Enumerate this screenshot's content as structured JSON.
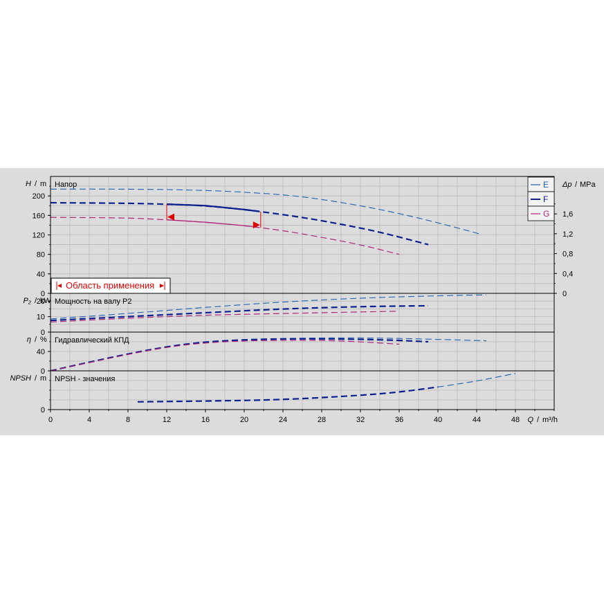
{
  "chart_data": {
    "type": "line",
    "x_axis": {
      "label_symbol": "Q",
      "label_unit": "m³/h",
      "range": [
        0,
        52
      ],
      "ticks": [
        0,
        4,
        8,
        12,
        16,
        20,
        24,
        28,
        32,
        36,
        40,
        44,
        48
      ]
    },
    "legend": {
      "placement": "top-right",
      "entries": [
        {
          "key": "E",
          "color": "#1f5fb4"
        },
        {
          "key": "F",
          "color": "#0b1f8f"
        },
        {
          "key": "G",
          "color": "#b0247a"
        }
      ]
    },
    "panels": [
      {
        "id": "head",
        "title": "Напор",
        "y_symbol": "H",
        "y_unit": "m",
        "y_range": [
          0,
          240
        ],
        "y_ticks": [
          0,
          40,
          80,
          120,
          160,
          200
        ],
        "right_axis": {
          "symbol": "Δp",
          "unit": "MPa",
          "ticks": [
            {
              "value": 0,
              "label": "0"
            },
            {
              "value": 0.4,
              "label": "0,4"
            },
            {
              "value": 0.8,
              "label": "0,8"
            },
            {
              "value": 1.2,
              "label": "1,2"
            },
            {
              "value": 1.6,
              "label": "1,6"
            }
          ]
        },
        "series": [
          {
            "key": "E",
            "points": [
              [
                0,
                214
              ],
              [
                8,
                214
              ],
              [
                16,
                212
              ],
              [
                24,
                203
              ],
              [
                28,
                193
              ],
              [
                32,
                180
              ],
              [
                36,
                164
              ],
              [
                40,
                145
              ],
              [
                44.5,
                121
              ]
            ]
          },
          {
            "key": "F",
            "points": [
              [
                0,
                186
              ],
              [
                8,
                185
              ],
              [
                12,
                183
              ],
              [
                16,
                180
              ],
              [
                20,
                172
              ],
              [
                22,
                167
              ],
              [
                26,
                156
              ],
              [
                30,
                142
              ],
              [
                34,
                126
              ],
              [
                39,
                100
              ]
            ]
          },
          {
            "key": "G",
            "points": [
              [
                0,
                156
              ],
              [
                8,
                155
              ],
              [
                12,
                151
              ],
              [
                16,
                146
              ],
              [
                20,
                139
              ],
              [
                24,
                129
              ],
              [
                28,
                115
              ],
              [
                32,
                100
              ],
              [
                36,
                80
              ]
            ]
          }
        ],
        "application_range": {
          "label": "Область применения",
          "q_min": 12,
          "q_max": 21.7
        }
      },
      {
        "id": "power",
        "title": "Мощность на валу P2",
        "y_symbol": "P₂",
        "y_unit": "kW",
        "y_range": [
          0,
          25
        ],
        "y_ticks": [
          0,
          10,
          20
        ],
        "series": [
          {
            "key": "E",
            "points": [
              [
                0,
                8.5
              ],
              [
                8,
                12
              ],
              [
                16,
                16
              ],
              [
                24,
                19.5
              ],
              [
                32,
                22
              ],
              [
                40,
                23.5
              ],
              [
                45,
                24
              ]
            ]
          },
          {
            "key": "F",
            "points": [
              [
                0,
                7.5
              ],
              [
                8,
                10
              ],
              [
                16,
                12.5
              ],
              [
                24,
                15
              ],
              [
                32,
                16.5
              ],
              [
                39,
                17
              ]
            ]
          },
          {
            "key": "G",
            "points": [
              [
                0,
                6.5
              ],
              [
                8,
                9
              ],
              [
                16,
                11
              ],
              [
                24,
                12
              ],
              [
                32,
                13
              ],
              [
                36,
                13.5
              ]
            ]
          }
        ]
      },
      {
        "id": "efficiency",
        "title": "Гидравлический КПД",
        "y_symbol": "η",
        "y_unit": "%",
        "y_range": [
          0,
          80
        ],
        "y_ticks": [
          0,
          40
        ],
        "series": [
          {
            "key": "E",
            "points": [
              [
                0,
                0
              ],
              [
                4,
                18
              ],
              [
                8,
                35
              ],
              [
                12,
                50
              ],
              [
                16,
                60
              ],
              [
                20,
                65
              ],
              [
                24,
                67
              ],
              [
                28,
                68
              ],
              [
                32,
                68
              ],
              [
                36,
                67
              ],
              [
                40,
                65
              ],
              [
                45,
                62
              ]
            ]
          },
          {
            "key": "F",
            "points": [
              [
                0,
                0
              ],
              [
                4,
                18
              ],
              [
                8,
                35
              ],
              [
                12,
                50
              ],
              [
                16,
                60
              ],
              [
                20,
                64
              ],
              [
                24,
                66
              ],
              [
                28,
                66
              ],
              [
                32,
                65
              ],
              [
                36,
                63
              ],
              [
                39,
                60
              ]
            ]
          },
          {
            "key": "G",
            "points": [
              [
                0,
                0
              ],
              [
                4,
                17
              ],
              [
                8,
                34
              ],
              [
                12,
                49
              ],
              [
                16,
                58
              ],
              [
                20,
                62
              ],
              [
                24,
                63
              ],
              [
                28,
                63
              ],
              [
                32,
                60
              ],
              [
                36,
                55
              ]
            ]
          }
        ]
      },
      {
        "id": "npsh",
        "title": "NPSH - значения",
        "y_symbol": "NPSH",
        "y_unit": "m",
        "y_range": [
          0,
          30
        ],
        "y_ticks": [
          0
        ],
        "series": [
          {
            "key": "F",
            "points": [
              [
                9,
                6
              ],
              [
                16,
                6.6
              ],
              [
                24,
                7.6
              ],
              [
                32,
                11
              ],
              [
                36,
                13.5
              ],
              [
                40,
                17.5
              ]
            ]
          },
          {
            "key": "E",
            "points": [
              [
                40,
                17.5
              ],
              [
                44,
                22
              ],
              [
                48,
                28
              ]
            ]
          }
        ]
      }
    ]
  }
}
